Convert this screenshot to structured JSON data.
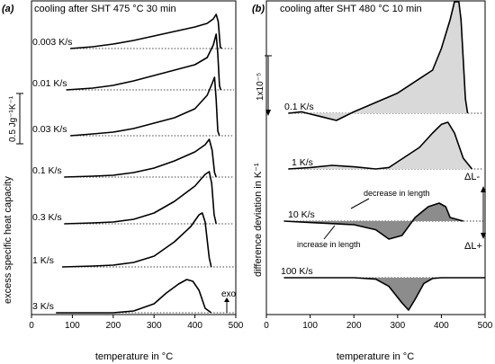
{
  "chart_data": [
    {
      "type": "line",
      "panel_label": "(a)",
      "title": "cooling after SHT 475 °C 30 min",
      "xlabel": "temperature in °C",
      "ylabel": "excess specific heat capacity",
      "xlim": [
        0,
        500
      ],
      "x_ticks": [
        0,
        100,
        200,
        300,
        400,
        500
      ],
      "scale_bar_label": "0.5 Jg⁻¹K⁻¹",
      "scale_bar_value": 0.5,
      "exo_label": "exo",
      "series": [
        {
          "name": "0.003 K/s",
          "points": [
            [
              95,
              0
            ],
            [
              150,
              0.02
            ],
            [
              200,
              0.05
            ],
            [
              250,
              0.09
            ],
            [
              300,
              0.14
            ],
            [
              350,
              0.19
            ],
            [
              400,
              0.24
            ],
            [
              430,
              0.28
            ],
            [
              445,
              0.33
            ],
            [
              452,
              0.38
            ],
            [
              457,
              0.3
            ],
            [
              462,
              0.02
            ],
            [
              465,
              0
            ]
          ]
        },
        {
          "name": "0.01 K/s",
          "points": [
            [
              85,
              0
            ],
            [
              150,
              0.02
            ],
            [
              200,
              0.05
            ],
            [
              250,
              0.1
            ],
            [
              300,
              0.16
            ],
            [
              350,
              0.22
            ],
            [
              400,
              0.28
            ],
            [
              430,
              0.36
            ],
            [
              445,
              0.5
            ],
            [
              452,
              0.62
            ],
            [
              456,
              0.4
            ],
            [
              460,
              0.05
            ],
            [
              463,
              0
            ]
          ]
        },
        {
          "name": "0.03 K/s",
          "points": [
            [
              95,
              0
            ],
            [
              150,
              0.02
            ],
            [
              200,
              0.04
            ],
            [
              250,
              0.08
            ],
            [
              300,
              0.14
            ],
            [
              350,
              0.2
            ],
            [
              400,
              0.3
            ],
            [
              430,
              0.45
            ],
            [
              442,
              0.58
            ],
            [
              448,
              0.65
            ],
            [
              452,
              0.4
            ],
            [
              456,
              0.05
            ],
            [
              460,
              0
            ]
          ]
        },
        {
          "name": "0.1 K/s",
          "points": [
            [
              80,
              0
            ],
            [
              150,
              0.01
            ],
            [
              200,
              0.02
            ],
            [
              250,
              0.05
            ],
            [
              300,
              0.1
            ],
            [
              350,
              0.18
            ],
            [
              400,
              0.28
            ],
            [
              425,
              0.36
            ],
            [
              435,
              0.42
            ],
            [
              442,
              0.3
            ],
            [
              448,
              0.05
            ],
            [
              452,
              0
            ]
          ]
        },
        {
          "name": "0.3 K/s",
          "points": [
            [
              80,
              0
            ],
            [
              150,
              0.01
            ],
            [
              200,
              0.02
            ],
            [
              250,
              0.05
            ],
            [
              300,
              0.12
            ],
            [
              350,
              0.25
            ],
            [
              400,
              0.42
            ],
            [
              425,
              0.55
            ],
            [
              435,
              0.58
            ],
            [
              441,
              0.45
            ],
            [
              447,
              0.1
            ],
            [
              452,
              0
            ]
          ]
        },
        {
          "name": "1 K/s",
          "points": [
            [
              75,
              0
            ],
            [
              150,
              0.01
            ],
            [
              200,
              0.02
            ],
            [
              250,
              0.05
            ],
            [
              300,
              0.12
            ],
            [
              350,
              0.28
            ],
            [
              390,
              0.45
            ],
            [
              410,
              0.58
            ],
            [
              418,
              0.6
            ],
            [
              425,
              0.5
            ],
            [
              435,
              0.1
            ],
            [
              440,
              0
            ]
          ]
        },
        {
          "name": "3 K/s",
          "points": [
            [
              60,
              0
            ],
            [
              150,
              0
            ],
            [
              200,
              0
            ],
            [
              250,
              0.02
            ],
            [
              300,
              0.1
            ],
            [
              330,
              0.22
            ],
            [
              360,
              0.32
            ],
            [
              380,
              0.37
            ],
            [
              395,
              0.35
            ],
            [
              410,
              0.25
            ],
            [
              425,
              0.05
            ],
            [
              440,
              0
            ]
          ]
        }
      ]
    },
    {
      "type": "area",
      "panel_label": "(b)",
      "title": "cooling after SHT 480 °C 10 min",
      "xlabel": "temperature in °C",
      "ylabel": "difference deviation in K⁻¹",
      "xlim": [
        0,
        500
      ],
      "x_ticks": [
        0,
        100,
        200,
        300,
        400,
        500
      ],
      "scale_bar_label": "1x10⁻⁵",
      "scale_bar_value": 1e-05,
      "delta_minus_label": "ΔL-",
      "delta_plus_label": "ΔL+",
      "annotations": {
        "decrease": "decrease in length",
        "increase": "increase in length"
      },
      "series": [
        {
          "name": "0.1 K/s",
          "points": [
            [
              50,
              0
            ],
            [
              80,
              0.02
            ],
            [
              120,
              -0.04
            ],
            [
              160,
              -0.1
            ],
            [
              200,
              0.02
            ],
            [
              250,
              0.15
            ],
            [
              300,
              0.28
            ],
            [
              350,
              0.48
            ],
            [
              380,
              0.6
            ],
            [
              400,
              0.9
            ],
            [
              420,
              1.3
            ],
            [
              430,
              1.55
            ],
            [
              440,
              1.55
            ],
            [
              445,
              1.3
            ],
            [
              455,
              0.2
            ],
            [
              460,
              0
            ]
          ]
        },
        {
          "name": "1 K/s",
          "points": [
            [
              50,
              0
            ],
            [
              100,
              0.02
            ],
            [
              150,
              0.05
            ],
            [
              200,
              0.03
            ],
            [
              250,
              0
            ],
            [
              280,
              0.02
            ],
            [
              300,
              0.1
            ],
            [
              350,
              0.3
            ],
            [
              380,
              0.5
            ],
            [
              400,
              0.62
            ],
            [
              415,
              0.65
            ],
            [
              430,
              0.5
            ],
            [
              450,
              0.15
            ],
            [
              470,
              0
            ]
          ]
        },
        {
          "name": "10 K/s",
          "points": [
            [
              40,
              0
            ],
            [
              100,
              -0.02
            ],
            [
              200,
              -0.05
            ],
            [
              250,
              -0.12
            ],
            [
              280,
              -0.25
            ],
            [
              310,
              -0.2
            ],
            [
              340,
              0.05
            ],
            [
              370,
              0.2
            ],
            [
              395,
              0.25
            ],
            [
              410,
              0.2
            ],
            [
              420,
              0.05
            ],
            [
              450,
              0
            ]
          ]
        },
        {
          "name": "100 K/s",
          "points": [
            [
              40,
              0
            ],
            [
              100,
              0
            ],
            [
              150,
              0
            ],
            [
              200,
              0
            ],
            [
              250,
              -0.02
            ],
            [
              280,
              -0.12
            ],
            [
              310,
              -0.35
            ],
            [
              325,
              -0.45
            ],
            [
              340,
              -0.3
            ],
            [
              360,
              -0.08
            ],
            [
              380,
              -0.01
            ],
            [
              400,
              0
            ],
            [
              500,
              0
            ]
          ]
        }
      ]
    }
  ]
}
